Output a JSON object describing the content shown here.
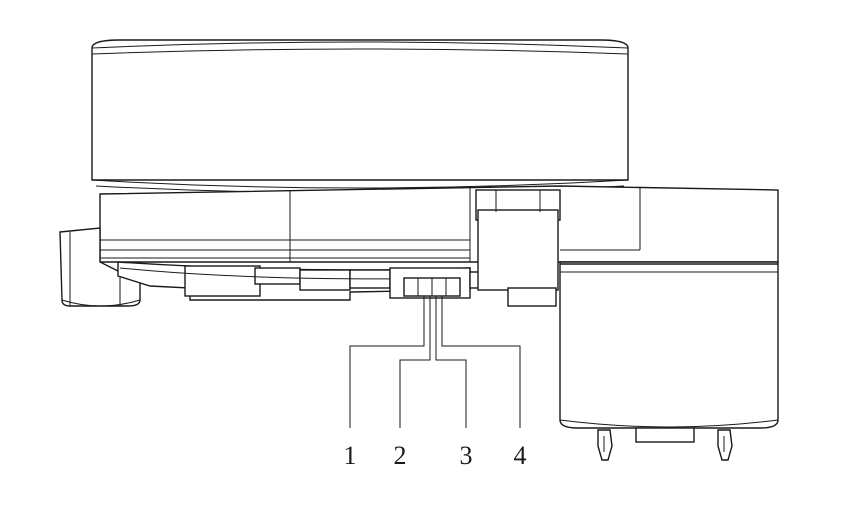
{
  "diagram": {
    "pin_labels": [
      "1",
      "2",
      "3",
      "4"
    ],
    "colors": {
      "line": "#1a1a1a",
      "background": "#ffffff"
    }
  }
}
